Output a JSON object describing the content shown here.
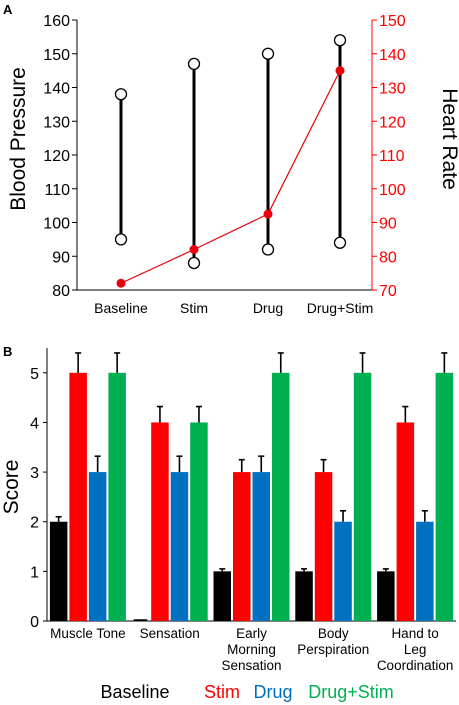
{
  "chart_data": [
    {
      "panel_label": "A",
      "type": "line",
      "categories": [
        "Baseline",
        "Stim",
        "Drug",
        "Drug+Stim"
      ],
      "ylabel": "Blood Pressure",
      "ylim": [
        80,
        160
      ],
      "yticks": [
        80,
        90,
        100,
        110,
        120,
        130,
        140,
        150,
        160
      ],
      "y2label": "Heart Rate",
      "y2lim": [
        70,
        150
      ],
      "y2ticks": [
        70,
        80,
        90,
        100,
        110,
        120,
        130,
        140,
        150
      ],
      "blood_pressure": {
        "systolic": [
          138,
          147,
          150,
          154
        ],
        "diastolic": [
          95,
          88,
          92,
          94
        ]
      },
      "heart_rate": [
        72,
        82,
        92.5,
        135
      ],
      "colors": {
        "bp": "#000000",
        "hr": "#e8000b",
        "hr_axis": "#ff0000"
      }
    },
    {
      "panel_label": "B",
      "type": "bar",
      "categories": [
        "Muscle Tone",
        "Sensation",
        "Early Morning Sensation",
        "Body Perspiration",
        "Hand to Leg Coordination"
      ],
      "category_lines": [
        [
          "Muscle Tone"
        ],
        [
          "Sensation"
        ],
        [
          "Early",
          "Morning",
          "Sensation"
        ],
        [
          "Body",
          "Perspiration"
        ],
        [
          "Hand to",
          "Leg",
          "Coordination"
        ]
      ],
      "ylabel": "Score",
      "ylim": [
        0,
        5.5
      ],
      "yticks": [
        0,
        1,
        2,
        3,
        4,
        5
      ],
      "series": [
        {
          "name": "Baseline",
          "color": "#000000",
          "values": [
            2,
            0,
            1,
            1,
            1
          ],
          "errors": [
            0.1,
            0,
            0.05,
            0.05,
            0.05
          ]
        },
        {
          "name": "Stim",
          "color": "#ff0000",
          "values": [
            5,
            4,
            3,
            3,
            4
          ],
          "errors": [
            0.4,
            0.32,
            0.25,
            0.25,
            0.32
          ]
        },
        {
          "name": "Drug",
          "color": "#0070c0",
          "values": [
            3,
            3,
            3,
            2,
            2
          ],
          "errors": [
            0.32,
            0.32,
            0.32,
            0.22,
            0.22
          ]
        },
        {
          "name": "Drug+Stim",
          "color": "#00b050",
          "values": [
            5,
            4,
            5,
            5,
            5
          ],
          "errors": [
            0.4,
            0.32,
            0.4,
            0.4,
            0.4
          ]
        }
      ],
      "legend_position": "bottom"
    }
  ]
}
